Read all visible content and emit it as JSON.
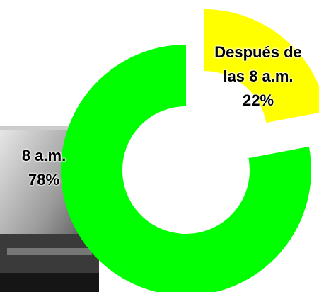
{
  "chart_data": {
    "type": "donut",
    "categories": [
      "Después de las 8 a.m.",
      "8 a.m."
    ],
    "values": [
      22,
      78
    ],
    "value_labels": [
      "22%",
      "78%"
    ],
    "colors": [
      "#ffff00",
      "#00ff00"
    ]
  }
}
